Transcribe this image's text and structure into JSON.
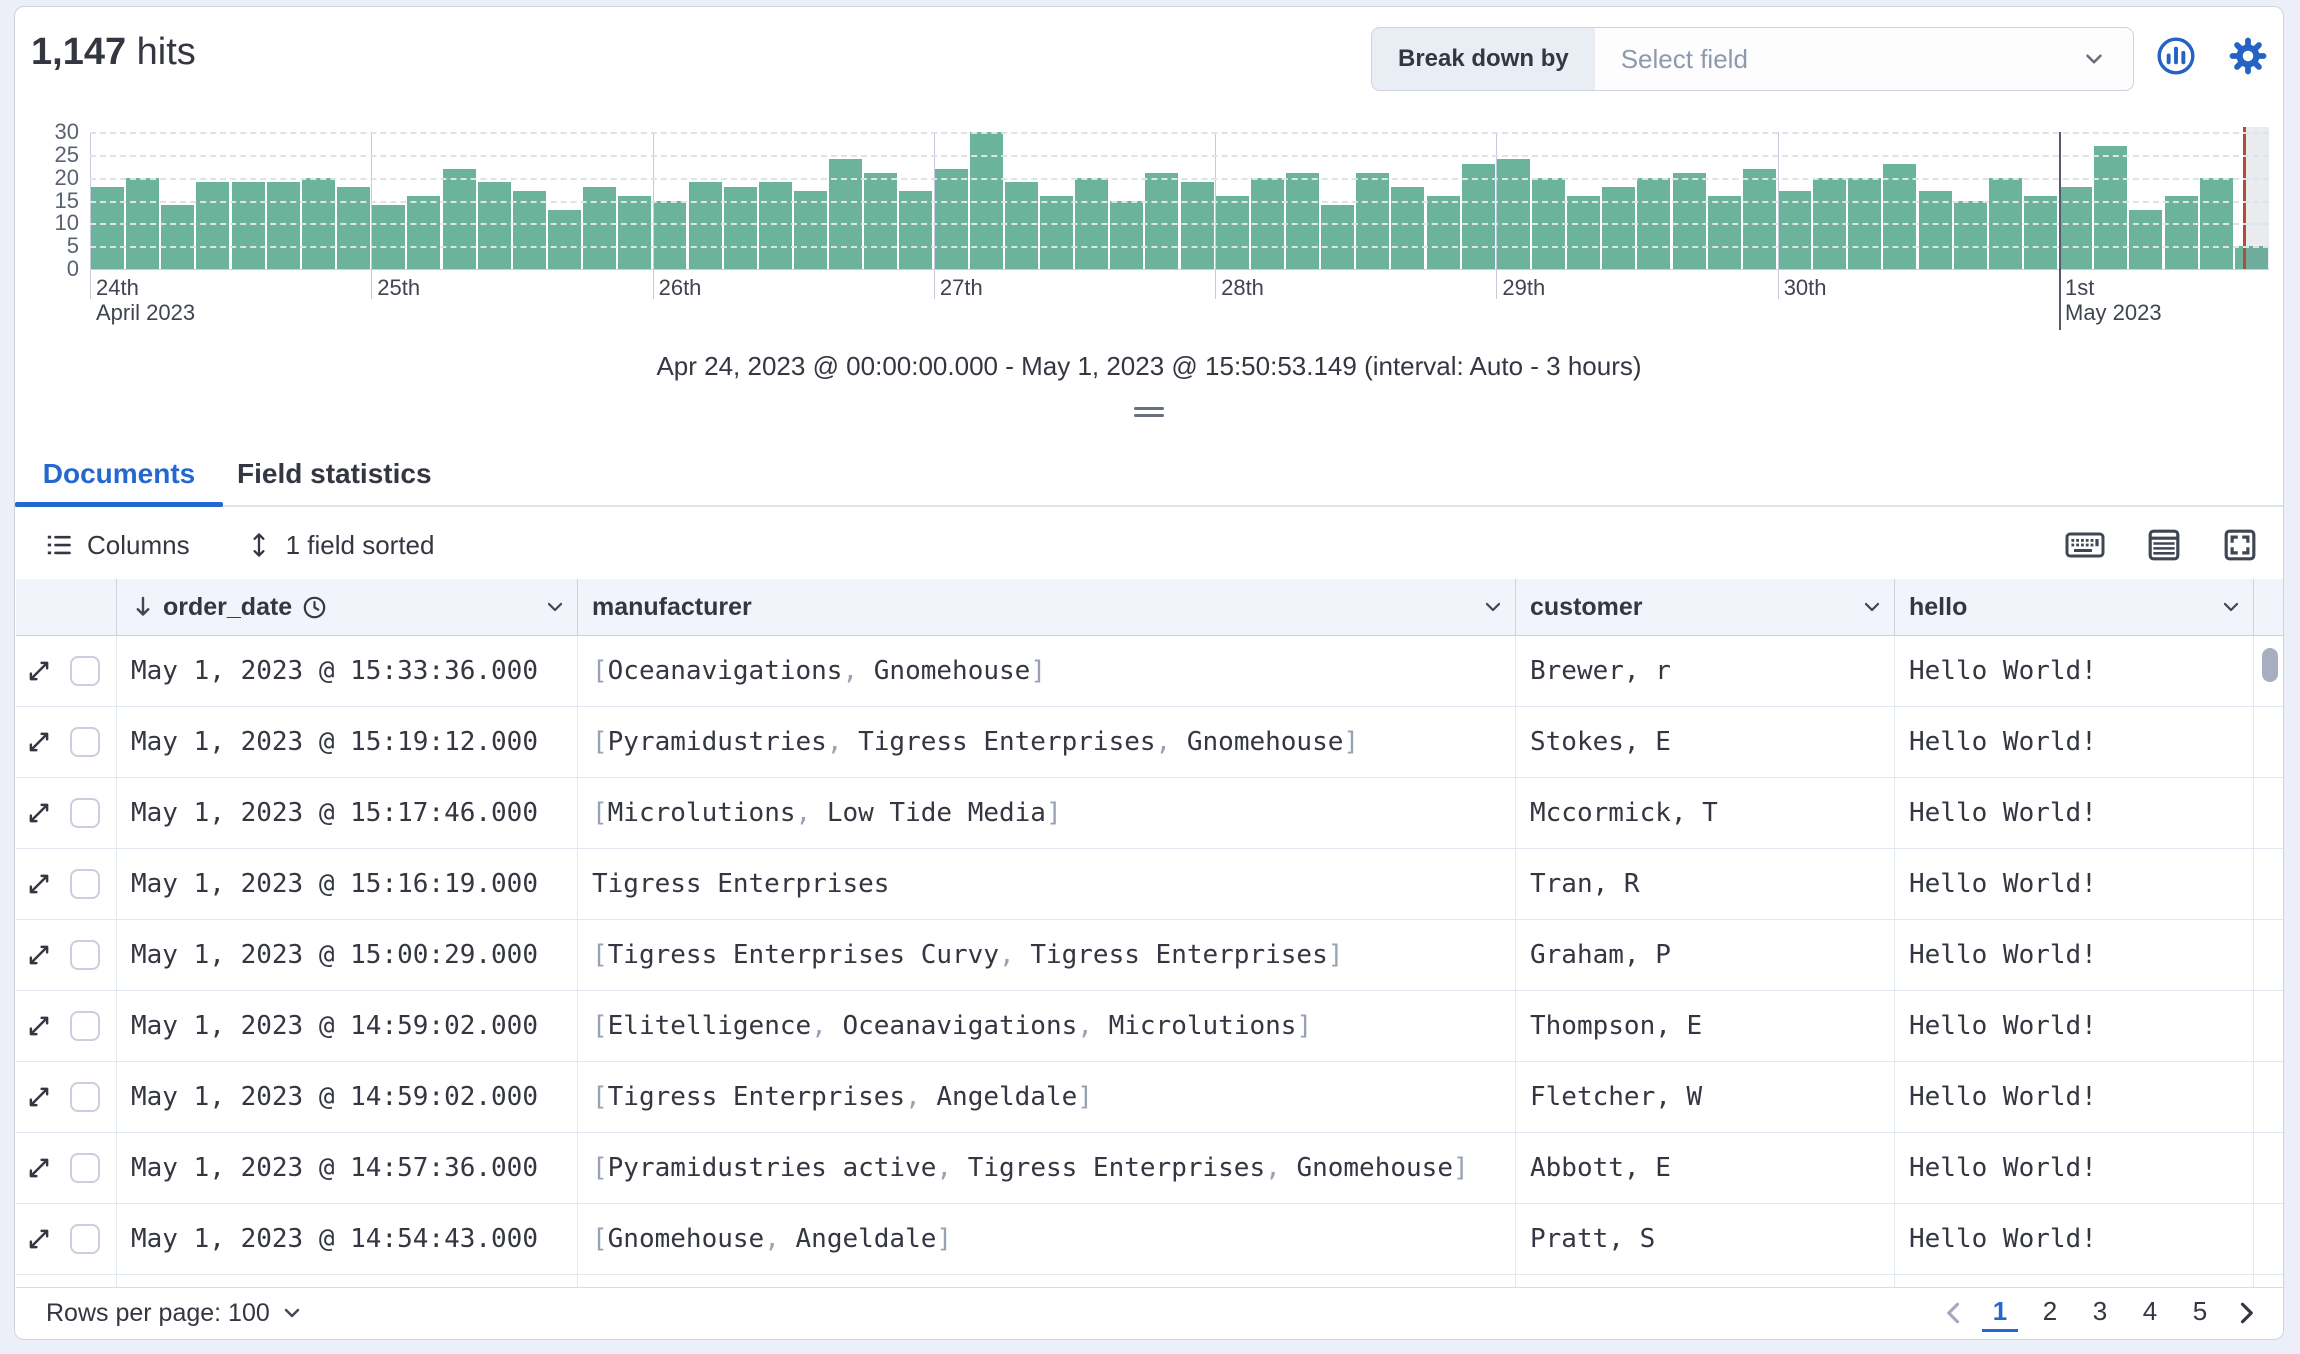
{
  "header": {
    "hits_count": "1,147",
    "hits_label": "hits",
    "breakdown_label": "Break down by",
    "breakdown_placeholder": "Select field"
  },
  "chart_data": {
    "type": "bar",
    "title": "Apr 24, 2023 @ 00:00:00.000 - May 1, 2023 @ 15:50:53.149 (interval: Auto - 3 hours)",
    "interval": "Auto - 3 hours",
    "x_start": "2023-04-24 00:00",
    "x_end": "2023-05-01 15:50",
    "ylim": [
      0,
      30
    ],
    "y_ticks": [
      0,
      5,
      10,
      15,
      20,
      25,
      30
    ],
    "grid": true,
    "legend": false,
    "bar_color": "#6cb39c",
    "end_marker_color": "#b34a3c",
    "values": [
      18,
      20,
      14,
      19,
      19,
      19,
      20,
      18,
      14,
      16,
      22,
      19,
      17,
      13,
      18,
      16,
      15,
      19,
      18,
      19,
      17,
      24,
      21,
      17,
      22,
      30,
      19,
      16,
      20,
      15,
      21,
      19,
      16,
      20,
      21,
      14,
      21,
      18,
      16,
      23,
      24,
      20,
      16,
      18,
      20,
      21,
      16,
      22,
      17,
      20,
      20,
      23,
      17,
      15,
      20,
      16,
      18,
      27,
      13,
      16,
      20,
      5
    ],
    "day_ticks": [
      {
        "label": "24th",
        "sub": "April 2023"
      },
      {
        "label": "25th"
      },
      {
        "label": "26th"
      },
      {
        "label": "27th"
      },
      {
        "label": "28th"
      },
      {
        "label": "29th"
      },
      {
        "label": "30th"
      },
      {
        "label": "1st",
        "sub": "May 2023"
      }
    ]
  },
  "tabs": [
    {
      "label": "Documents",
      "active": true
    },
    {
      "label": "Field statistics",
      "active": false
    }
  ],
  "toolbar": {
    "columns_label": "Columns",
    "sorted_label": "1 field sorted"
  },
  "table": {
    "columns": [
      {
        "label": "order_date",
        "sorted": "desc",
        "has_clock": true
      },
      {
        "label": "manufacturer"
      },
      {
        "label": "customer"
      },
      {
        "label": "hello"
      }
    ],
    "rows": [
      {
        "order_date": "May 1, 2023 @ 15:33:36.000",
        "manufacturer": {
          "array": true,
          "items": [
            "Oceanavigations",
            "Gnomehouse"
          ]
        },
        "customer": "Brewer, r",
        "hello": "Hello World!"
      },
      {
        "order_date": "May 1, 2023 @ 15:19:12.000",
        "manufacturer": {
          "array": true,
          "items": [
            "Pyramidustries",
            "Tigress Enterprises",
            "Gnomehouse"
          ]
        },
        "customer": "Stokes, E",
        "hello": "Hello World!"
      },
      {
        "order_date": "May 1, 2023 @ 15:17:46.000",
        "manufacturer": {
          "array": true,
          "items": [
            "Microlutions",
            "Low Tide Media"
          ]
        },
        "customer": "Mccormick, T",
        "hello": "Hello World!"
      },
      {
        "order_date": "May 1, 2023 @ 15:16:19.000",
        "manufacturer": {
          "array": false,
          "items": [
            "Tigress Enterprises"
          ]
        },
        "customer": "Tran, R",
        "hello": "Hello World!"
      },
      {
        "order_date": "May 1, 2023 @ 15:00:29.000",
        "manufacturer": {
          "array": true,
          "items": [
            "Tigress Enterprises Curvy",
            "Tigress Enterprises"
          ]
        },
        "customer": "Graham, P",
        "hello": "Hello World!"
      },
      {
        "order_date": "May 1, 2023 @ 14:59:02.000",
        "manufacturer": {
          "array": true,
          "items": [
            "Elitelligence",
            "Oceanavigations",
            "Microlutions"
          ]
        },
        "customer": "Thompson, E",
        "hello": "Hello World!"
      },
      {
        "order_date": "May 1, 2023 @ 14:59:02.000",
        "manufacturer": {
          "array": true,
          "items": [
            "Tigress Enterprises",
            "Angeldale"
          ]
        },
        "customer": "Fletcher, W",
        "hello": "Hello World!"
      },
      {
        "order_date": "May 1, 2023 @ 14:57:36.000",
        "manufacturer": {
          "array": true,
          "items": [
            "Pyramidustries active",
            "Tigress Enterprises",
            "Gnomehouse"
          ]
        },
        "customer": "Abbott, E",
        "hello": "Hello World!"
      },
      {
        "order_date": "May 1, 2023 @ 14:54:43.000",
        "manufacturer": {
          "array": true,
          "items": [
            "Gnomehouse",
            "Angeldale"
          ]
        },
        "customer": "Pratt, S",
        "hello": "Hello World!"
      }
    ]
  },
  "footer": {
    "rows_per_page_label": "Rows per page: 100",
    "pages": [
      "1",
      "2",
      "3",
      "4",
      "5"
    ],
    "active_page": "1"
  }
}
